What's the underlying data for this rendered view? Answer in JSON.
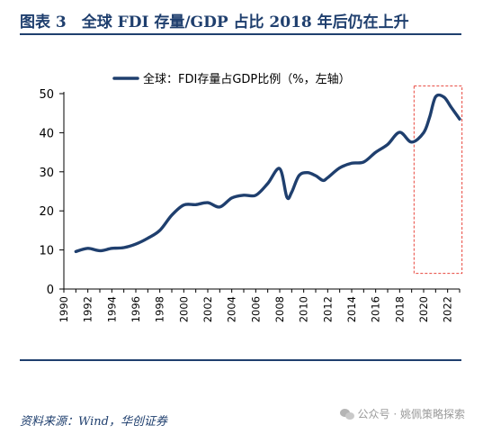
{
  "figure": {
    "title": "图表 3　全球 FDI 存量/GDP 占比 2018 年后仍在上升"
  },
  "source": "资料来源：Wind，华创证券",
  "watermark": "公众号 · 姚佩策略探索",
  "colors": {
    "line": "#1f3f6e",
    "rule": "#1f3f6e",
    "highlight": "#e8453c",
    "axis": "#000000"
  },
  "chart_data": {
    "type": "line",
    "legend": {
      "label": "全球：FDI存量占GDP比例（%，左轴）",
      "placement": "top-center"
    },
    "grid": false,
    "xlim": [
      1990,
      2023
    ],
    "ylim": [
      0,
      50
    ],
    "yticks": [
      0,
      10,
      20,
      30,
      40,
      50
    ],
    "xticks": [
      1990,
      1992,
      1994,
      1996,
      1998,
      2000,
      2002,
      2004,
      2006,
      2008,
      2010,
      2012,
      2014,
      2016,
      2018,
      2020,
      2022
    ],
    "highlight_range": {
      "x": [
        2019.2,
        2023.2
      ],
      "y": [
        4,
        52
      ]
    },
    "series": [
      {
        "name": "全球：FDI存量占GDP比例（%，左轴）",
        "points": [
          [
            1991,
            9.6
          ],
          [
            1992,
            10.4
          ],
          [
            1993,
            9.8
          ],
          [
            1994,
            10.4
          ],
          [
            1995,
            10.6
          ],
          [
            1996,
            11.5
          ],
          [
            1997,
            13
          ],
          [
            1998,
            15
          ],
          [
            1999,
            18.9
          ],
          [
            2000,
            21.5
          ],
          [
            2001,
            21.6
          ],
          [
            2002,
            22.1
          ],
          [
            2003,
            21
          ],
          [
            2004,
            23.3
          ],
          [
            2005,
            24
          ],
          [
            2006,
            24
          ],
          [
            2007,
            27
          ],
          [
            2008,
            30.8
          ],
          [
            2008.6,
            23.5
          ],
          [
            2009,
            24.8
          ],
          [
            2009.6,
            29
          ],
          [
            2010.3,
            29.8
          ],
          [
            2011,
            29
          ],
          [
            2011.6,
            27.8
          ],
          [
            2012,
            28.5
          ],
          [
            2013,
            31
          ],
          [
            2014,
            32.2
          ],
          [
            2015,
            32.5
          ],
          [
            2016,
            35
          ],
          [
            2017,
            37
          ],
          [
            2018,
            40.1
          ],
          [
            2019,
            37.6
          ],
          [
            2020,
            40
          ],
          [
            2020.5,
            44
          ],
          [
            2021,
            49.2
          ],
          [
            2021.7,
            49.1
          ],
          [
            2022.3,
            46.5
          ],
          [
            2023,
            43.5
          ]
        ]
      }
    ]
  }
}
